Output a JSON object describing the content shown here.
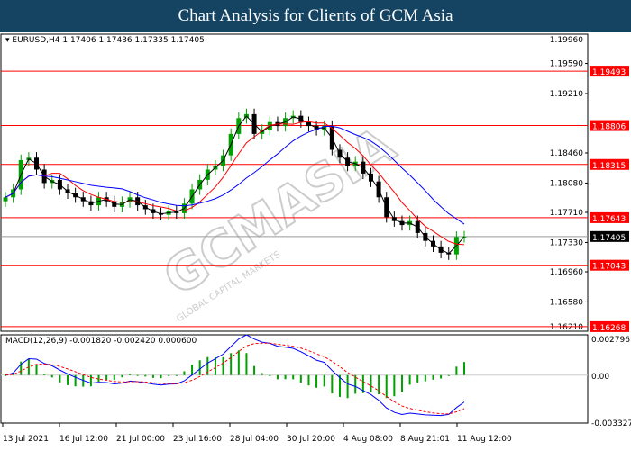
{
  "title": "Chart Analysis for Clients of GCM Asia",
  "watermark": "GCMASIA",
  "watermark_sub": "GLOBAL CAPITAL MARKETS",
  "chart_data": {
    "type": "candlestick",
    "symbol_info": "EURUSD,H4  1.17406 1.17436 1.17335 1.17405",
    "ylim": [
      1.1621,
      1.1996
    ],
    "yticks": [
      "1.19960",
      "1.19590",
      "1.19210",
      "1.18460",
      "1.18080",
      "1.17710",
      "1.17330",
      "1.16960",
      "1.16580",
      "1.16210"
    ],
    "xticks": [
      "13 Jul 2021",
      "16 Jul 12:00",
      "21 Jul 00:00",
      "23 Jul 16:00",
      "28 Jul 04:00",
      "30 Jul 20:00",
      "4 Aug 08:00",
      "8 Aug 21:01",
      "11 Aug 12:00"
    ],
    "closes": [
      1.179,
      1.18,
      1.1837,
      1.184,
      1.1825,
      1.1808,
      1.1812,
      1.18,
      1.1795,
      1.179,
      1.1785,
      1.178,
      1.179,
      1.1785,
      1.1778,
      1.1784,
      1.179,
      1.178,
      1.1775,
      1.177,
      1.1768,
      1.1773,
      1.177,
      1.1782,
      1.18,
      1.1812,
      1.1825,
      1.183,
      1.1843,
      1.187,
      1.189,
      1.1895,
      1.187,
      1.1875,
      1.1885,
      1.188,
      1.189,
      1.1893,
      1.1885,
      1.188,
      1.1875,
      1.188,
      1.185,
      1.184,
      1.183,
      1.1835,
      1.182,
      1.181,
      1.179,
      1.1765,
      1.176,
      1.1755,
      1.176,
      1.1745,
      1.1735,
      1.1728,
      1.172,
      1.1718,
      1.174,
      1.17405
    ],
    "current_price": {
      "value": 1.17405,
      "label": "1.17405"
    },
    "levels": [
      {
        "value": 1.19493,
        "label": "1.19493"
      },
      {
        "value": 1.18806,
        "label": "1.18806"
      },
      {
        "value": 1.18315,
        "label": "1.18315"
      },
      {
        "value": 1.17643,
        "label": "1.17643"
      },
      {
        "value": 1.17043,
        "label": "1.17043"
      },
      {
        "value": 1.16268,
        "label": "1.16268"
      }
    ],
    "ma_colors": {
      "fast": "#000000",
      "mid": "#ff0000",
      "slow": "#0000ff"
    },
    "macd": {
      "label": "MACD(12,26,9) -0.001820 -0.002420 0.000600",
      "yticks": [
        "0.002796",
        "0.00",
        "-0.003327"
      ],
      "ylim": [
        -0.003327,
        0.002796
      ]
    },
    "colors": {
      "bull": "#00a000",
      "bear": "#000000",
      "level": "#ff0000",
      "histogram": "#00a000",
      "macd": "#0000ff",
      "signal": "#ff0000"
    }
  }
}
